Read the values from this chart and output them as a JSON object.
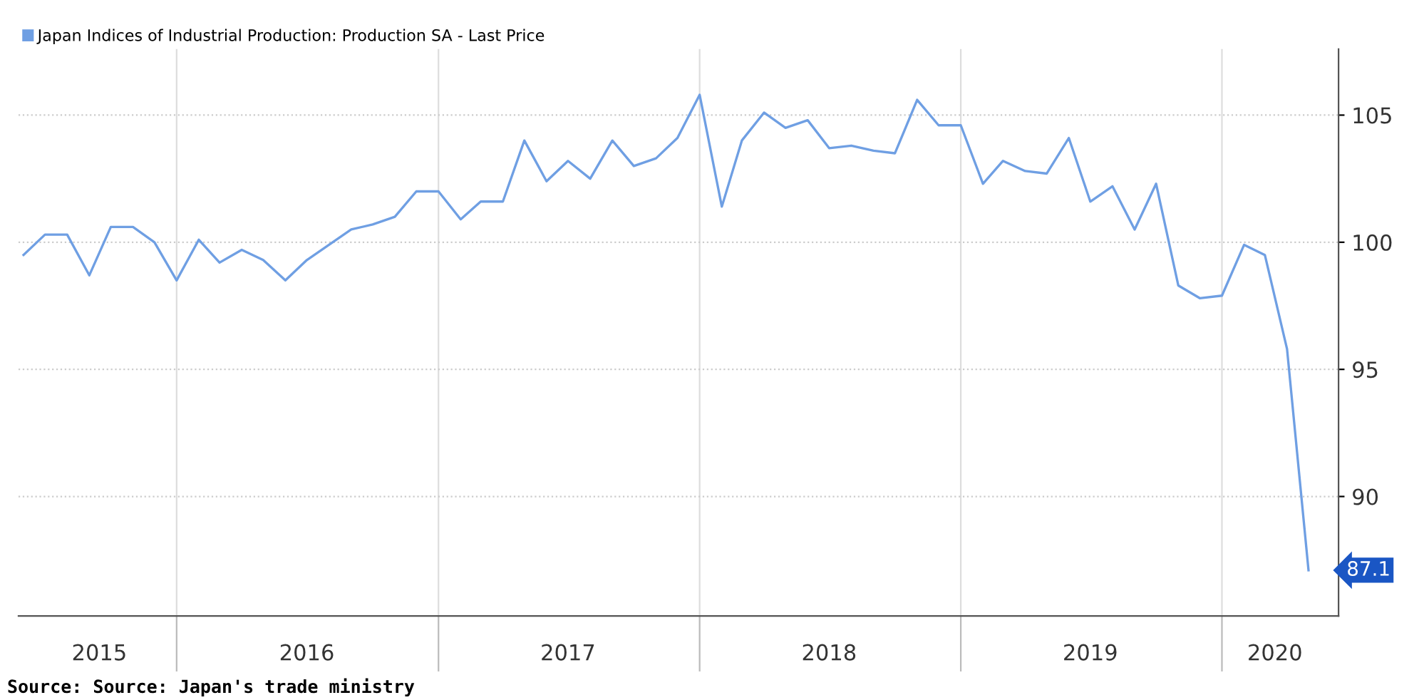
{
  "chart_data": {
    "type": "line",
    "x": [
      "2015-06",
      "2015-07",
      "2015-08",
      "2015-09",
      "2015-10",
      "2015-11",
      "2015-12",
      "2016-01",
      "2016-02",
      "2016-03",
      "2016-04",
      "2016-05",
      "2016-06",
      "2016-07",
      "2016-08",
      "2016-09",
      "2016-10",
      "2016-11",
      "2016-12",
      "2017-01",
      "2017-02",
      "2017-03",
      "2017-04",
      "2017-05",
      "2017-06",
      "2017-07",
      "2017-08",
      "2017-09",
      "2017-10",
      "2017-11",
      "2017-12",
      "2018-01",
      "2018-02",
      "2018-03",
      "2018-04",
      "2018-05",
      "2018-06",
      "2018-07",
      "2018-08",
      "2018-09",
      "2018-10",
      "2018-11",
      "2018-12",
      "2019-01",
      "2019-02",
      "2019-03",
      "2019-04",
      "2019-05",
      "2019-06",
      "2019-07",
      "2019-08",
      "2019-09",
      "2019-10",
      "2019-11",
      "2019-12",
      "2020-01",
      "2020-02",
      "2020-03",
      "2020-04",
      "2020-05"
    ],
    "series": [
      {
        "name": "Japan Indices of Industrial Production: Production SA - Last Price",
        "color": "#6f9fe3",
        "values": [
          99.5,
          100.3,
          100.3,
          98.7,
          100.6,
          100.6,
          100.0,
          98.5,
          100.1,
          99.2,
          99.7,
          99.3,
          98.5,
          99.3,
          99.9,
          100.5,
          100.7,
          101.0,
          102.0,
          102.0,
          100.9,
          101.6,
          101.6,
          104.0,
          102.4,
          103.2,
          102.5,
          104.0,
          103.0,
          103.3,
          104.1,
          105.8,
          101.4,
          104.0,
          105.1,
          104.5,
          104.8,
          103.7,
          103.8,
          103.6,
          103.5,
          105.6,
          104.6,
          104.6,
          102.3,
          103.2,
          102.8,
          102.7,
          104.1,
          101.6,
          102.2,
          100.5,
          102.3,
          98.3,
          97.8,
          97.9,
          99.9,
          99.5,
          95.8,
          87.1
        ]
      }
    ],
    "xlim": [
      "2015-05-25",
      "2020-06-12"
    ],
    "xticks": [
      {
        "value": "2016-01-01",
        "label": null
      },
      {
        "value": "2017-01-01",
        "label": null
      },
      {
        "value": "2018-01-01",
        "label": null
      },
      {
        "value": "2019-01-01",
        "label": null
      },
      {
        "value": "2020-01-01",
        "label": null
      },
      {
        "value": "2015-09-15",
        "label": "2015"
      },
      {
        "value": "2016-07-01",
        "label": "2016"
      },
      {
        "value": "2017-07-01",
        "label": "2017"
      },
      {
        "value": "2018-07-01",
        "label": "2018"
      },
      {
        "value": "2019-07-01",
        "label": "2019"
      },
      {
        "value": "2020-03-15",
        "label": "2020"
      }
    ],
    "ylim": [
      85.3,
      107.6
    ],
    "yticks": [
      90,
      95,
      100,
      105
    ],
    "grid": true,
    "legend": "top left",
    "annotations": [
      {
        "text": "87.1",
        "x": "2020-05",
        "y": 87.1
      },
      "Source: Source: Japan's trade ministry"
    ]
  }
}
